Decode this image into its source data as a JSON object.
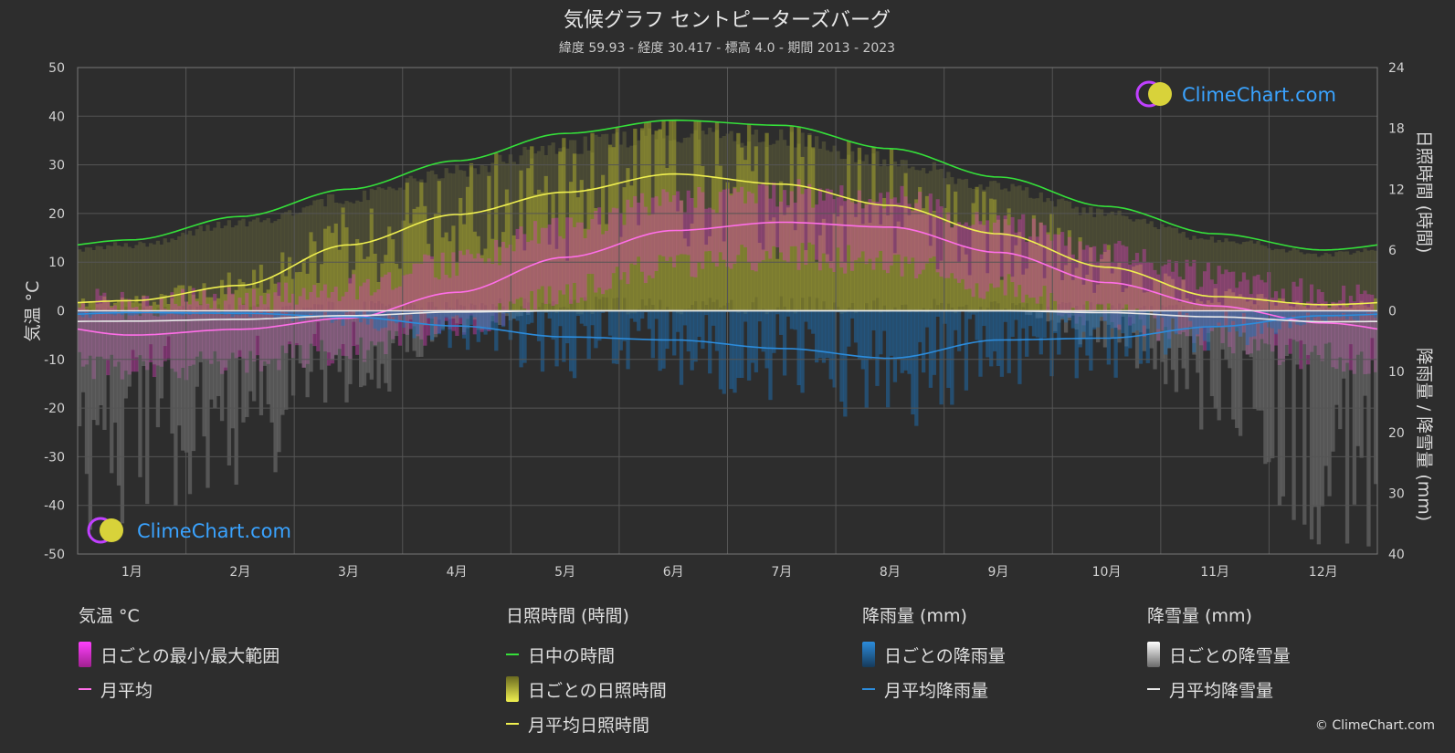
{
  "colors": {
    "background": "#2d2d2d",
    "grid": "#555555",
    "daylight": "#35e03a",
    "sunshine_avg": "#f0f050",
    "sunshine_daily": "#a8a82e",
    "temp_avg": "#ff6ee8",
    "temp_range": "#d63fbb",
    "rain_avg": "#2c8cdc",
    "rain_daily": "#1e6fb4",
    "snow_avg": "#e8e8e8",
    "snow_daily": "#8a8a8a",
    "logo_blue": "#3aa3ff",
    "logo_ring": "#c040ff"
  },
  "logo": {
    "text": "ClimeChart.com"
  },
  "copyright": "© ClimeChart.com",
  "legend": {
    "temp": {
      "header": "気温 °C",
      "range": "日ごとの最小/最大範囲",
      "avg": "月平均"
    },
    "sun": {
      "header": "日照時間 (時間)",
      "daylight": "日中の時間",
      "daily": "日ごとの日照時間",
      "avg": "月平均日照時間"
    },
    "rain": {
      "header": "降雨量 (mm)",
      "daily": "日ごとの降雨量",
      "avg": "月平均降雨量"
    },
    "snow": {
      "header": "降雪量 (mm)",
      "daily": "日ごとの降雪量",
      "avg": "月平均降雪量"
    }
  },
  "chart_data": {
    "type": "line",
    "title": "気候グラフ セントピーターズバーグ",
    "subtitle": "緯度 59.93 - 経度 30.417 - 標高 4.0 - 期間 2013 - 2023",
    "ylabel_left": "気温 °C",
    "ylabel_right_top": "日照時間 (時間)",
    "ylabel_right_bottom": "降雨量 / 降雪量 (mm)",
    "categories": [
      "1月",
      "2月",
      "3月",
      "4月",
      "5月",
      "6月",
      "7月",
      "8月",
      "9月",
      "10月",
      "11月",
      "12月"
    ],
    "y_left": {
      "min": -50,
      "max": 50,
      "ticks": [
        50,
        40,
        30,
        20,
        10,
        0,
        -10,
        -20,
        -30,
        -40,
        -50
      ]
    },
    "y_right_sun": {
      "min": 0,
      "max": 24,
      "ticks": [
        24,
        18,
        12,
        6,
        0
      ]
    },
    "y_right_precip": {
      "min": 0,
      "max": 40,
      "ticks": [
        0,
        10,
        20,
        30,
        40
      ]
    },
    "grid": true,
    "series": [
      {
        "name": "日中の時間",
        "axis": "sun",
        "values": [
          7.0,
          9.3,
          12.0,
          14.8,
          17.5,
          18.8,
          18.3,
          16.0,
          13.2,
          10.3,
          7.6,
          6.0
        ]
      },
      {
        "name": "月平均日照時間",
        "axis": "sun",
        "values": [
          1.0,
          2.5,
          6.5,
          9.5,
          11.7,
          13.5,
          12.5,
          10.4,
          7.6,
          4.3,
          1.4,
          0.6
        ]
      },
      {
        "name": "月平均",
        "axis": "temp",
        "values": [
          -5.0,
          -3.8,
          -1.5,
          3.8,
          11.0,
          16.5,
          18.2,
          17.2,
          12.0,
          5.8,
          1.0,
          -2.5
        ]
      },
      {
        "name": "月平均降雨量",
        "axis": "precip",
        "values": [
          0.3,
          0.4,
          1.0,
          2.5,
          4.3,
          4.8,
          6.2,
          7.8,
          4.8,
          4.5,
          2.6,
          0.8
        ]
      },
      {
        "name": "月平均降雪量",
        "axis": "precip",
        "values": [
          1.7,
          1.4,
          0.8,
          0.2,
          0,
          0,
          0,
          0,
          0,
          0.3,
          1.0,
          1.8
        ]
      }
    ]
  }
}
